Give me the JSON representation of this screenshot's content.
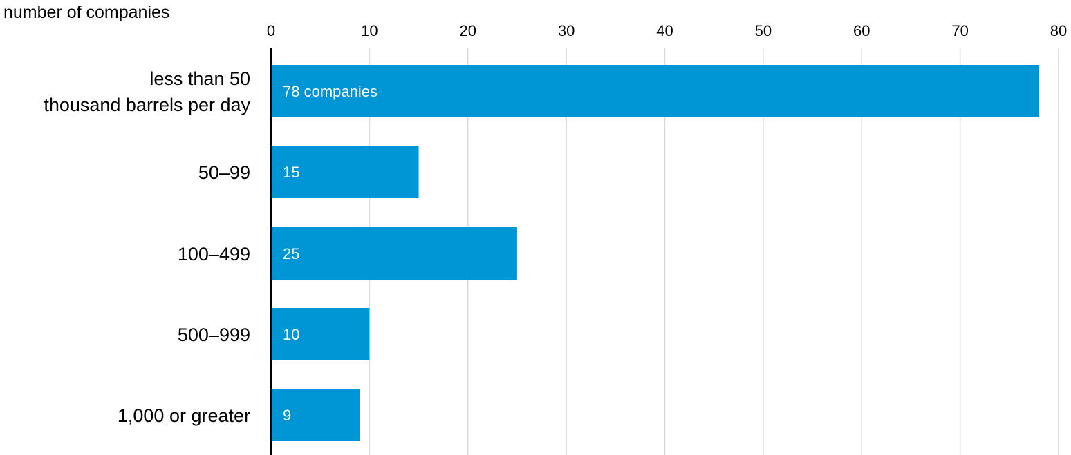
{
  "chart_data": {
    "type": "bar",
    "orientation": "horizontal",
    "ylabel": "number of companies",
    "categories": [
      "less than 50\nthousand barrels per day",
      "50–99",
      "100–499",
      "500–999",
      "1,000 or greater"
    ],
    "values": [
      78,
      15,
      25,
      10,
      9
    ],
    "data_labels": [
      "78 companies",
      "15",
      "25",
      "10",
      "9"
    ],
    "xlim": [
      0,
      80
    ],
    "x_ticks": [
      0,
      10,
      20,
      30,
      40,
      50,
      60,
      70,
      80
    ],
    "x_tick_labels": [
      "0",
      "10",
      "20",
      "30",
      "40",
      "50",
      "60",
      "70",
      "80"
    ],
    "x_axis_position": "top",
    "grid": true,
    "legend": "none",
    "colors": {
      "bar": "#0096d6",
      "grid": "#d9d9d9",
      "baseline": "#000000",
      "bar_label": "#ffffff"
    }
  }
}
